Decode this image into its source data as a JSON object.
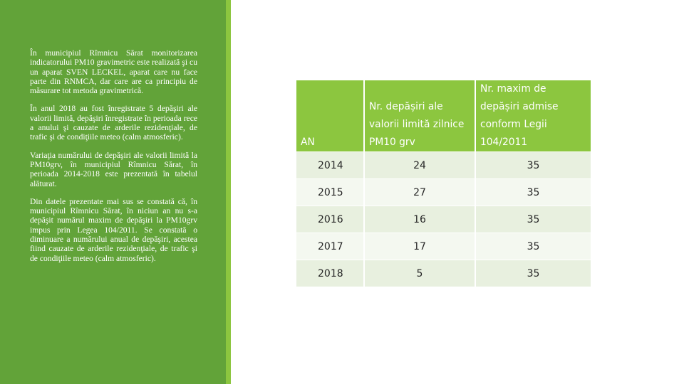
{
  "left_text": {
    "p1": "În municipiul Rîmnicu Sărat monitorizarea indicatorului PM10 gravimetric este realizată şi cu un aparat SVEN LECKEL, aparat care nu face parte din RNMCA, dar care are ca principiu de măsurare tot metoda gravimetrică.",
    "p2": "În anul 2018 au fost înregistrate 5 depăşiri ale valorii limită, depăşiri înregistrate în perioada rece a anului şi cauzate de arderile rezidenţiale, de trafic şi de condiţiile meteo (calm atmosferic).",
    "p3": "Variaţia numărului de depăşiri ale valorii limită la PM10grv, în municipiul Rîmnicu Sărat, în perioada 2014-2018 este prezentată în tabelul alăturat.",
    "p4": "Din datele prezentate mai sus se constată că, în municipiul Rîmnicu Sărat, în niciun an nu s-a depăşit numărul maxim de depăşiri la PM10grv impus prin Legea 104/2011. Se constată o diminuare a numărului anual de depăşiri, acestea fiind cauzate de arderile rezidenţiale, de trafic şi de condiţiile meteo (calm atmosferic)."
  },
  "table": {
    "headers": {
      "an": "AN",
      "depasiri": "Nr. depășiri ale valorii limită zilnice PM10 grv",
      "maxim": "Nr. maxim de depășiri admise conform Legii 104/2011"
    },
    "rows": [
      {
        "year": "2014",
        "depasiri": "24",
        "maxim": "35"
      },
      {
        "year": "2015",
        "depasiri": "27",
        "maxim": "35"
      },
      {
        "year": "2016",
        "depasiri": "16",
        "maxim": "35"
      },
      {
        "year": "2017",
        "depasiri": "17",
        "maxim": "35"
      },
      {
        "year": "2018",
        "depasiri": "5",
        "maxim": "35"
      }
    ]
  },
  "colors": {
    "panel_green": "#62a339",
    "accent_green": "#8cc63f",
    "row_light": "#e8f0df",
    "row_lighter": "#f4f8f0"
  }
}
